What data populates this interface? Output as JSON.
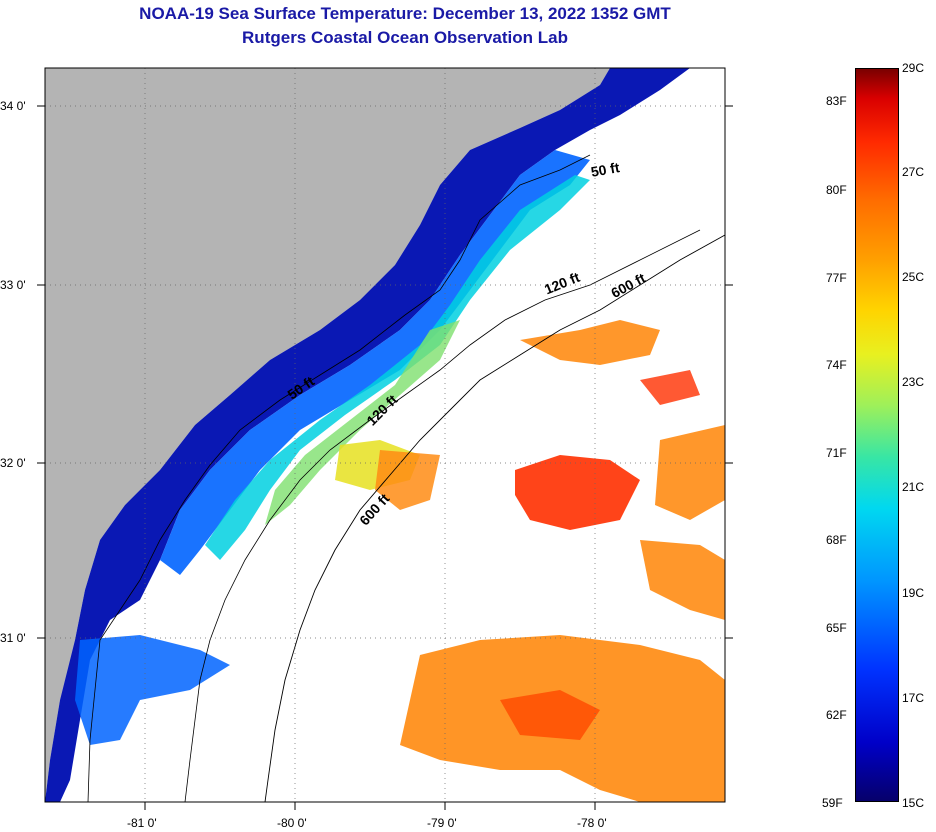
{
  "title": {
    "line1": "NOAA-19 Sea Surface Temperature:  December 13, 2022 1352 GMT",
    "line2": "Rutgers Coastal Ocean Observation Lab"
  },
  "map": {
    "x_ticks": [
      "-81 0'",
      "-80 0'",
      "-79 0'",
      "-78 0'"
    ],
    "y_ticks": [
      "34 0'",
      "33 0'",
      "32 0'",
      "31 0'"
    ],
    "contour_labels": [
      "50 ft",
      "120 ft",
      "600 ft",
      "50 ft",
      "120 ft",
      "600 ft"
    ],
    "colors": {
      "land": "#b4b4b4",
      "no_data": "#ffffff",
      "coastal_deep": "#0a18b4",
      "coastal_mid": "#0064ff",
      "cyan": "#00d0e0",
      "green": "#7ee06e",
      "yellow": "#e6e020",
      "orange": "#ff8c14",
      "red": "#ff2000"
    }
  },
  "colorbar": {
    "celsius": [
      "29C",
      "27C",
      "25C",
      "23C",
      "21C",
      "19C",
      "17C",
      "15C"
    ],
    "fahrenheit": [
      "83F",
      "80F",
      "77F",
      "74F",
      "71F",
      "68F",
      "65F",
      "62F",
      "59F"
    ]
  }
}
